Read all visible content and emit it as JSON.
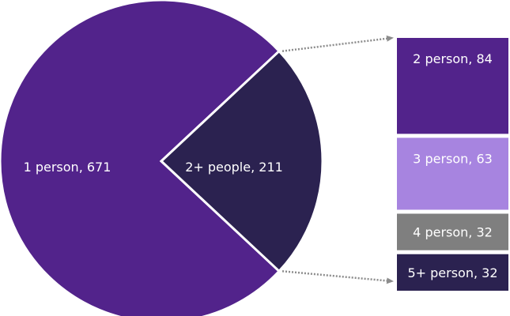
{
  "chart_data": {
    "type": "pie",
    "subtype": "bar-of-pie",
    "title": "",
    "pie": {
      "slices": [
        {
          "name": "1 person",
          "value": 671,
          "label": "1 person, 671",
          "color": "#52238B"
        },
        {
          "name": "2+ people",
          "value": 211,
          "label": "2+ people, 211",
          "color": "#2B2250"
        }
      ]
    },
    "bar": {
      "segments": [
        {
          "name": "2 person",
          "value": 84,
          "label": "2 person, 84",
          "color": "#52238B"
        },
        {
          "name": "3 person",
          "value": 63,
          "label": "3 person, 63",
          "color": "#A784E0"
        },
        {
          "name": "4 person",
          "value": 32,
          "label": "4 person, 32",
          "color": "#7F7F7F"
        },
        {
          "name": "5+ person",
          "value": 32,
          "label": "5+ person, 32",
          "color": "#2B2250"
        }
      ]
    },
    "connector_color": "#8C8C8C",
    "separator_color": "#FFFFFF"
  }
}
